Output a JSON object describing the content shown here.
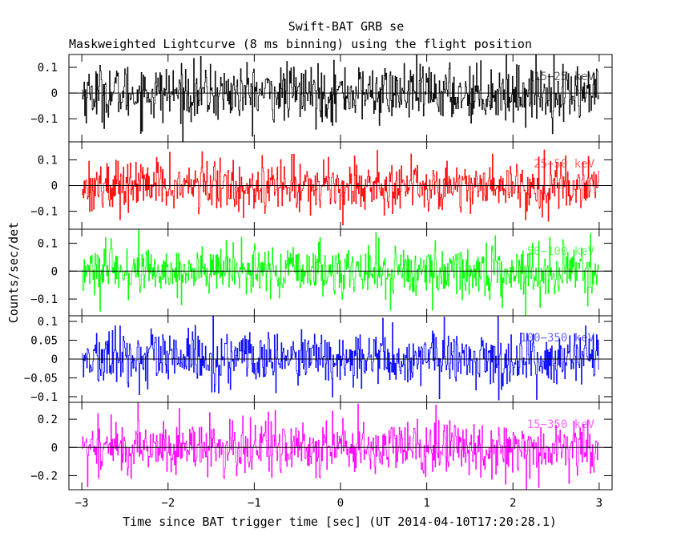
{
  "chart_data": {
    "type": "line",
    "title": "Swift-BAT GRB se",
    "subtitle": "Maskweighted Lightcurve (8 ms binning) using the flight position",
    "xlabel": "Time since BAT trigger time [sec] (UT 2014-04-10T17:20:28.1)",
    "ylabel": "Counts/sec/det",
    "xlim": [
      -3.15,
      3.15
    ],
    "x_ticks": [
      -3,
      -2,
      -1,
      0,
      1,
      2,
      3
    ],
    "x_tick_labels": [
      "−3",
      "−2",
      "−1",
      "0",
      "1",
      "2",
      "3"
    ],
    "bin_width_s": 0.008,
    "data_range": [
      -3.0,
      3.0
    ],
    "panels": [
      {
        "name": "15-25 keV",
        "label": "15−25 keV",
        "color": "#000000",
        "ylim": [
          -0.19,
          0.15
        ],
        "yticks": [
          0.1,
          0,
          -0.1
        ],
        "ytick_labels": [
          "0.1",
          "0",
          "−0.1"
        ],
        "noise_sigma": 0.055
      },
      {
        "name": "25-50 keV",
        "label": "25−50 keV",
        "color": "#ff0000",
        "ylim": [
          -0.17,
          0.17
        ],
        "yticks": [
          0.1,
          0,
          -0.1
        ],
        "ytick_labels": [
          "0.1",
          "0",
          "−0.1"
        ],
        "noise_sigma": 0.05
      },
      {
        "name": "50-100 keV",
        "label": "50−100 keV",
        "color": "#00ff00",
        "ylim": [
          -0.16,
          0.15
        ],
        "yticks": [
          0.1,
          0,
          -0.1
        ],
        "ytick_labels": [
          "0.1",
          "0",
          "−0.1"
        ],
        "noise_sigma": 0.046
      },
      {
        "name": "100-350 keV",
        "label": "100−350 keV",
        "color": "#0000ff",
        "ylim": [
          -0.115,
          0.115
        ],
        "yticks": [
          0.1,
          0.05,
          0,
          -0.05,
          -0.1
        ],
        "ytick_labels": [
          "0.1",
          "0.05",
          "0",
          "−0.05",
          "−0.1"
        ],
        "noise_sigma": 0.037
      },
      {
        "name": "15-350 keV",
        "label": "15−350 keV",
        "color": "#ff00ff",
        "ylim": [
          -0.3,
          0.32
        ],
        "yticks": [
          0.2,
          0,
          -0.2
        ],
        "ytick_labels": [
          "0.2",
          "0",
          "−0.2"
        ],
        "noise_sigma": 0.1
      }
    ]
  }
}
